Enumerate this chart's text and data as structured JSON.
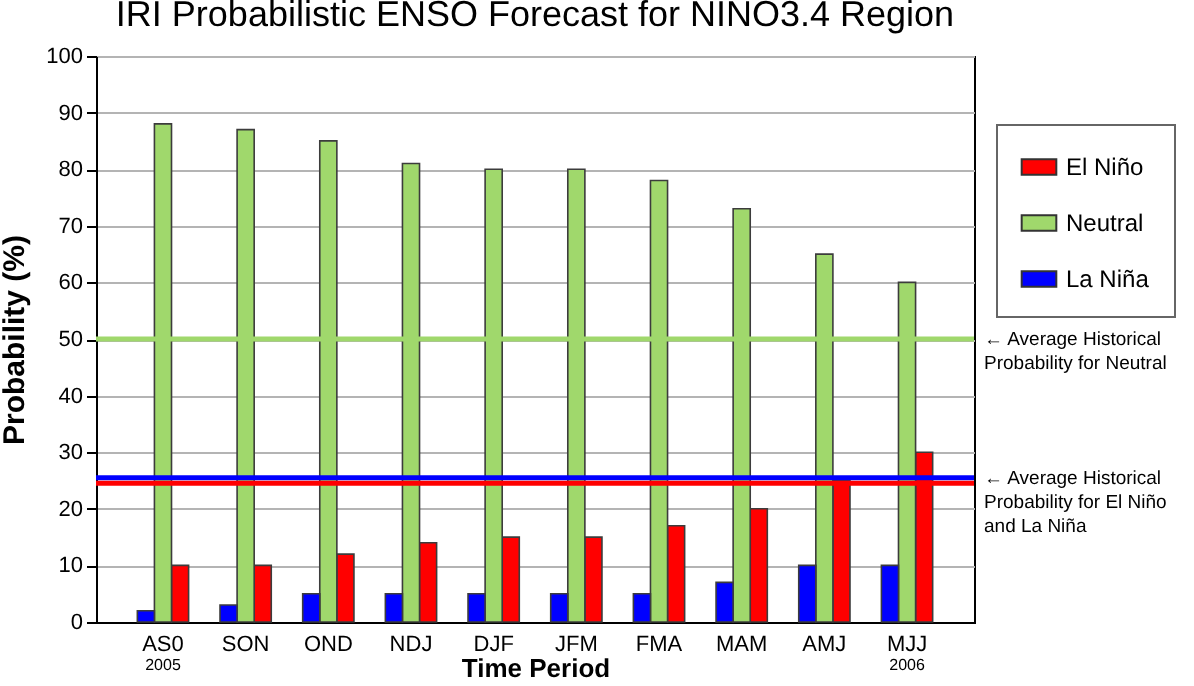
{
  "chart_data": {
    "type": "bar",
    "title": "IRI Probabilistic ENSO Forecast for NINO3.4 Region",
    "xlabel": "Time Period",
    "ylabel": "Probability (%)",
    "categories": [
      "AS0\n2005",
      "SON",
      "OND",
      "NDJ",
      "DJF",
      "JFM",
      "FMA",
      "MAM",
      "AMJ",
      "MJJ\n2006"
    ],
    "series": [
      {
        "name": "El Niño",
        "color": "#ff0000",
        "values": [
          10,
          10,
          12,
          14,
          15,
          15,
          17,
          20,
          25,
          30
        ]
      },
      {
        "name": "Neutral",
        "color": "#a0d86c",
        "values": [
          88,
          87,
          85,
          81,
          80,
          80,
          78,
          73,
          65,
          60
        ]
      },
      {
        "name": "La Niña",
        "color": "#0000ff",
        "values": [
          2,
          3,
          5,
          5,
          5,
          5,
          5,
          7,
          10,
          10
        ]
      }
    ],
    "ylim": [
      0,
      100
    ],
    "yticks": [
      0,
      10,
      20,
      30,
      40,
      50,
      60,
      70,
      80,
      90,
      100
    ],
    "grid": "y",
    "legend": "right",
    "ref_lines": [
      {
        "axis": "y",
        "value": 50,
        "label": "← Average Historical\nProbability for Neutral",
        "color": "#a0d86c"
      },
      {
        "axis": "y",
        "value": 25.5,
        "label": "← Average Historical\nProbability for El Niño\nand La Niña",
        "color": "#0000ff"
      },
      {
        "axis": "y",
        "value": 24.5,
        "label": null,
        "color": "#ff0000"
      }
    ]
  }
}
